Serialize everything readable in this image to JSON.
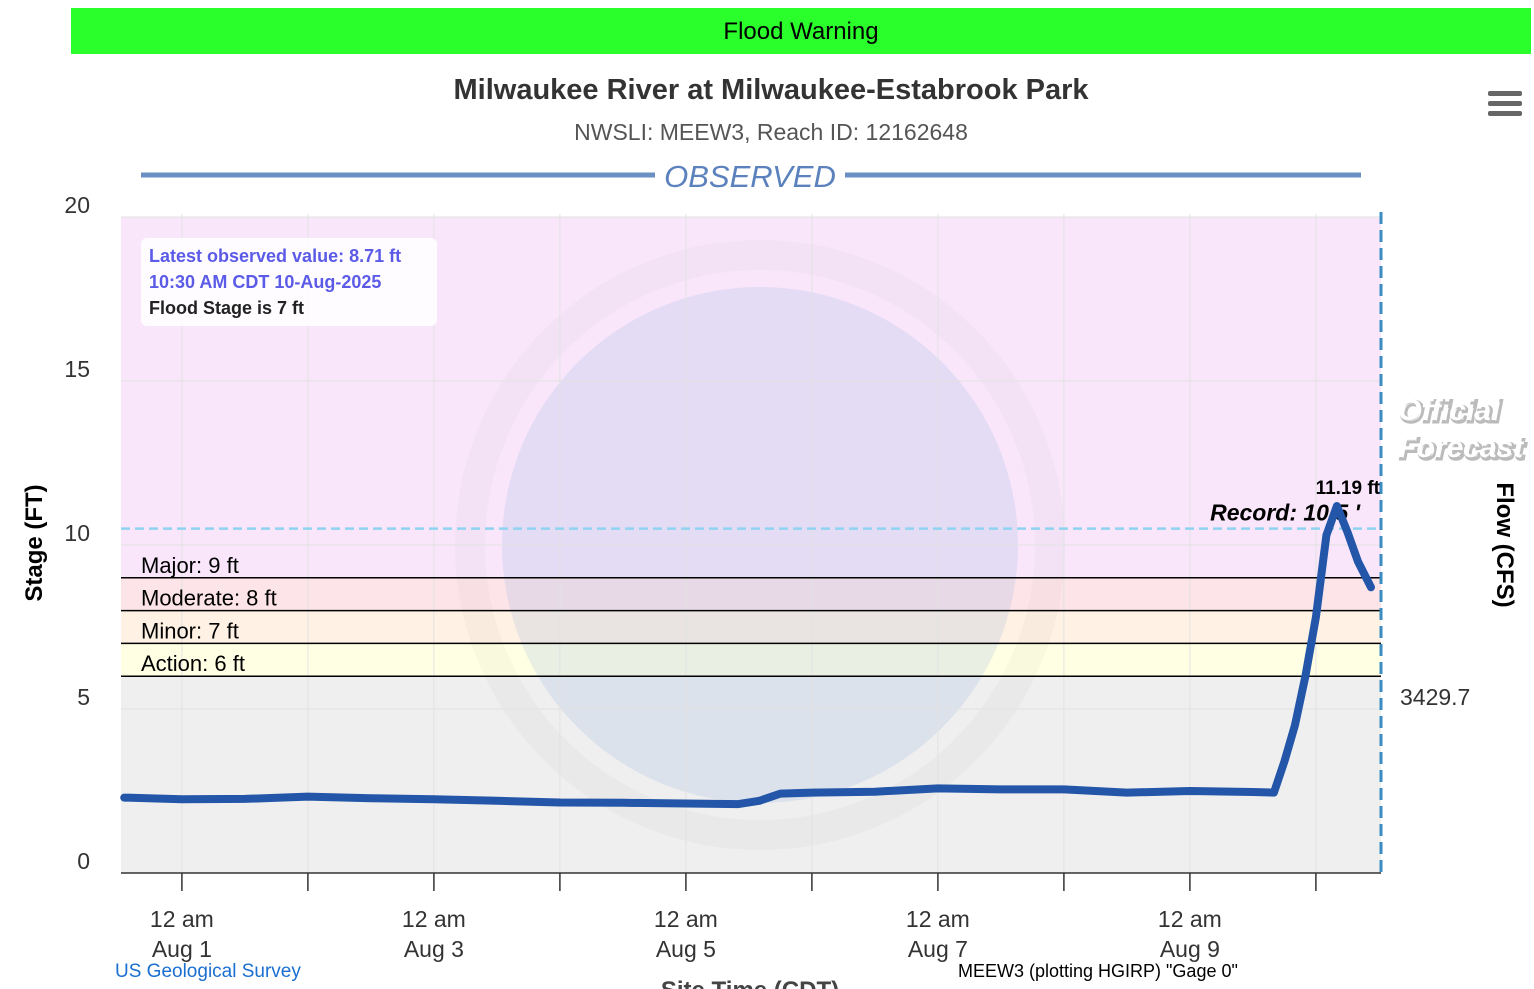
{
  "banner": "Flood Warning",
  "menu_icon": true,
  "chart_data": {
    "type": "line",
    "title": "Milwaukee River at Milwaukee-Estabrook Park",
    "subtitle": "NWSLI: MEEW3, Reach ID: 12162648",
    "section_label": "OBSERVED",
    "ylabel": "Stage (FT)",
    "y2label": "Flow (CFS)",
    "xlabel": "Site Time (CDT)",
    "ylim": [
      0,
      20
    ],
    "yticks": [
      0,
      5,
      10,
      15,
      20
    ],
    "grid": true,
    "xlim": [
      "2025-07-31T12:24",
      "2025-08-10T12:24"
    ],
    "xticks": [
      {
        "value": "2025-08-01T00:00",
        "label": [
          "12 am",
          "Aug 1"
        ]
      },
      {
        "value": "2025-08-03T00:00",
        "label": [
          "12 am",
          "Aug 3"
        ]
      },
      {
        "value": "2025-08-05T00:00",
        "label": [
          "12 am",
          "Aug 5"
        ]
      },
      {
        "value": "2025-08-07T00:00",
        "label": [
          "12 am",
          "Aug 7"
        ]
      },
      {
        "value": "2025-08-09T00:00",
        "label": [
          "12 am",
          "Aug 9"
        ]
      }
    ],
    "xminorticks": [
      "2025-08-02T00:00",
      "2025-08-04T00:00",
      "2025-08-06T00:00",
      "2025-08-08T00:00",
      "2025-08-10T00:00"
    ],
    "flow_ticks": [
      {
        "stage": 5,
        "flow": 3429.7
      }
    ],
    "forecast_boundary": "2025-08-10T12:24",
    "forecast_label": [
      "Official",
      "Forecast"
    ],
    "series": [
      {
        "name": "Observed stage",
        "color": "#2356a8",
        "x": [
          "2025-07-31T13:00",
          "2025-08-01T00:00",
          "2025-08-01T12:00",
          "2025-08-02T00:00",
          "2025-08-02T12:00",
          "2025-08-03T00:00",
          "2025-08-03T12:00",
          "2025-08-04T00:00",
          "2025-08-04T12:00",
          "2025-08-05T00:00",
          "2025-08-05T10:00",
          "2025-08-05T14:00",
          "2025-08-05T18:00",
          "2025-08-06T00:00",
          "2025-08-06T12:00",
          "2025-08-07T00:00",
          "2025-08-07T12:00",
          "2025-08-08T00:00",
          "2025-08-08T12:00",
          "2025-08-09T00:00",
          "2025-08-09T12:00",
          "2025-08-09T16:00",
          "2025-08-09T18:00",
          "2025-08-09T20:00",
          "2025-08-09T22:00",
          "2025-08-10T00:00",
          "2025-08-10T02:00",
          "2025-08-10T04:00",
          "2025-08-10T06:00",
          "2025-08-10T08:00",
          "2025-08-10T10:30"
        ],
        "values": [
          2.3,
          2.25,
          2.26,
          2.33,
          2.28,
          2.25,
          2.2,
          2.15,
          2.14,
          2.12,
          2.1,
          2.2,
          2.42,
          2.45,
          2.48,
          2.58,
          2.55,
          2.55,
          2.45,
          2.5,
          2.47,
          2.45,
          3.4,
          4.5,
          6.0,
          7.8,
          10.3,
          11.19,
          10.4,
          9.5,
          8.71
        ]
      }
    ],
    "peak_label": "11.19 ft",
    "record": {
      "value": 10.5,
      "label": "Record: 10.5 '",
      "color": "#8fd3f0"
    },
    "stages": [
      {
        "label": "Action: 6 ft",
        "value": 6,
        "color": "#ffffe3"
      },
      {
        "label": "Minor: 7 ft",
        "value": 7,
        "color": "#fff1e3"
      },
      {
        "label": "Moderate: 8 ft",
        "value": 8,
        "color": "#fde4e8"
      },
      {
        "label": "Major: 9 ft",
        "value": 9,
        "color": "#f9e6fb"
      }
    ],
    "base_color": "#efefef",
    "info": [
      "Latest observed value: 8.71 ft",
      "10:30 AM CDT 10-Aug-2025",
      "Flood Stage is 7 ft"
    ]
  },
  "footer": {
    "left": "US Geological Survey",
    "right": "MEEW3 (plotting HGIRP) \"Gage 0\""
  }
}
